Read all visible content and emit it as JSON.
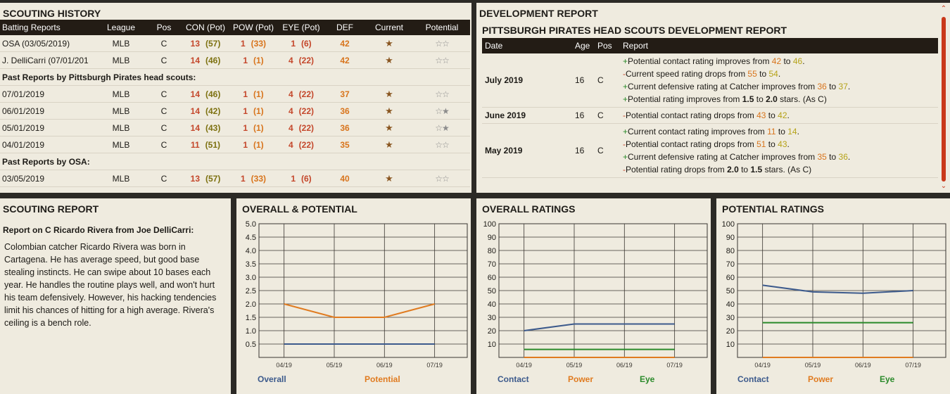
{
  "scouting_history": {
    "title": "SCOUTING HISTORY",
    "headers": [
      "Batting Reports",
      "League",
      "Pos",
      "CON (Pot)",
      "POW (Pot)",
      "EYE (Pot)",
      "DEF",
      "Current",
      "Potential"
    ],
    "current_reports": [
      {
        "src": "OSA (03/05/2019)",
        "league": "MLB",
        "pos": "C",
        "con": "13",
        "conp": "(57)",
        "pow": "1",
        "powp": "(33)",
        "eye": "1",
        "eyep": "(6)",
        "def": "42",
        "cur": "★",
        "pot": "☆☆"
      },
      {
        "src": "J. DelliCarri (07/01/201",
        "league": "MLB",
        "pos": "C",
        "con": "14",
        "conp": "(46)",
        "pow": "1",
        "powp": "(1)",
        "eye": "4",
        "eyep": "(22)",
        "def": "42",
        "cur": "★",
        "pot": "☆☆"
      }
    ],
    "section1_label": "Past Reports by Pittsburgh Pirates head scouts:",
    "past_scout_reports": [
      {
        "src": "07/01/2019",
        "league": "MLB",
        "pos": "C",
        "con": "14",
        "conp": "(46)",
        "pow": "1",
        "powp": "(1)",
        "eye": "4",
        "eyep": "(22)",
        "def": "37",
        "cur": "★",
        "pot": "☆☆"
      },
      {
        "src": "06/01/2019",
        "league": "MLB",
        "pos": "C",
        "con": "14",
        "conp": "(42)",
        "pow": "1",
        "powp": "(1)",
        "eye": "4",
        "eyep": "(22)",
        "def": "36",
        "cur": "★",
        "pot": "☆★"
      },
      {
        "src": "05/01/2019",
        "league": "MLB",
        "pos": "C",
        "con": "14",
        "conp": "(43)",
        "pow": "1",
        "powp": "(1)",
        "eye": "4",
        "eyep": "(22)",
        "def": "36",
        "cur": "★",
        "pot": "☆★"
      },
      {
        "src": "04/01/2019",
        "league": "MLB",
        "pos": "C",
        "con": "11",
        "conp": "(51)",
        "pow": "1",
        "powp": "(1)",
        "eye": "4",
        "eyep": "(22)",
        "def": "35",
        "cur": "★",
        "pot": "☆☆"
      }
    ],
    "section2_label": "Past Reports by OSA:",
    "past_osa_reports": [
      {
        "src": "03/05/2019",
        "league": "MLB",
        "pos": "C",
        "con": "13",
        "conp": "(57)",
        "pow": "1",
        "powp": "(33)",
        "eye": "1",
        "eyep": "(6)",
        "def": "40",
        "cur": "★",
        "pot": "☆☆"
      }
    ]
  },
  "development_report": {
    "title": "DEVELOPMENT REPORT",
    "subtitle": "PITTSBURGH PIRATES HEAD SCOUTS DEVELOPMENT REPORT",
    "headers": [
      "Date",
      "Age",
      "Pos",
      "Report"
    ],
    "rows": [
      {
        "date": "July 2019",
        "age": "16",
        "pos": "C",
        "lines": [
          {
            "sign": "+",
            "text": "Potential contact rating improves from ",
            "v1": "42",
            "mid": " to ",
            "v2": "46",
            "end": "."
          },
          {
            "sign": "-",
            "text": "Current speed rating drops from ",
            "v1": "55",
            "mid": " to ",
            "v2": "54",
            "end": "."
          },
          {
            "sign": "+",
            "text": "Current defensive rating at Catcher improves from ",
            "v1": "36",
            "mid": " to ",
            "v2": "37",
            "end": "."
          },
          {
            "sign": "+",
            "text": "Potential rating improves from ",
            "b1": "1.5",
            "mid": " to ",
            "b2": "2.0",
            "end": " stars. (As C)"
          }
        ]
      },
      {
        "date": "June 2019",
        "age": "16",
        "pos": "C",
        "lines": [
          {
            "sign": "-",
            "text": "Potential contact rating drops from ",
            "v1": "43",
            "mid": " to ",
            "v2": "42",
            "end": "."
          }
        ]
      },
      {
        "date": "May 2019",
        "age": "16",
        "pos": "C",
        "lines": [
          {
            "sign": "+",
            "text": "Current contact rating improves from ",
            "v1": "11",
            "mid": " to ",
            "v2": "14",
            "end": "."
          },
          {
            "sign": "-",
            "text": "Potential contact rating drops from ",
            "v1": "51",
            "mid": " to ",
            "v2": "43",
            "end": "."
          },
          {
            "sign": "+",
            "text": "Current defensive rating at Catcher improves from ",
            "v1": "35",
            "mid": " to ",
            "v2": "36",
            "end": "."
          },
          {
            "sign": "-",
            "text": "Potential rating drops from ",
            "b1": "2.0",
            "mid": " to ",
            "b2": "1.5",
            "end": " stars. (As C)"
          }
        ]
      }
    ]
  },
  "scouting_report": {
    "title": "SCOUTING REPORT",
    "report_title": "Report on C Ricardo Rivera from Joe DelliCarri:",
    "body": "Colombian catcher Ricardo Rivera was born in Cartagena. He has average speed, but good base stealing instincts.  He can swipe about 10 bases each year. He handles the routine plays well, and won't hurt his team defensively. However, his hacking tendencies limit his chances of hitting for a high average. Rivera's ceiling is a bench role."
  },
  "colors": {
    "blue": "#3c5a8c",
    "orange": "#e07b20",
    "green": "#2a8a2a",
    "red": "#c4472b"
  },
  "chart_data": [
    {
      "type": "line",
      "title": "OVERALL & POTENTIAL",
      "x": [
        "04/19",
        "05/19",
        "06/19",
        "07/19"
      ],
      "ylim": [
        0,
        5
      ],
      "yticks": [
        "0.5",
        "1.0",
        "1.5",
        "2.0",
        "2.5",
        "3.0",
        "3.5",
        "4.0",
        "4.5",
        "5.0"
      ],
      "grid": true,
      "series": [
        {
          "name": "Overall",
          "color": "#3c5a8c",
          "values": [
            0.5,
            0.5,
            0.5,
            0.5
          ]
        },
        {
          "name": "Potential",
          "color": "#e07b20",
          "values": [
            2.0,
            1.5,
            1.5,
            2.0
          ]
        }
      ]
    },
    {
      "type": "line",
      "title": "OVERALL RATINGS",
      "x": [
        "04/19",
        "05/19",
        "06/19",
        "07/19"
      ],
      "ylim": [
        0,
        100
      ],
      "yticks": [
        "10",
        "20",
        "30",
        "40",
        "50",
        "60",
        "70",
        "80",
        "90",
        "100"
      ],
      "grid": true,
      "series": [
        {
          "name": "Contact",
          "color": "#3c5a8c",
          "values": [
            20,
            25,
            25,
            25
          ]
        },
        {
          "name": "Power",
          "color": "#e07b20",
          "values": [
            0,
            0,
            0,
            0
          ]
        },
        {
          "name": "Eye",
          "color": "#2a8a2a",
          "values": [
            6,
            6,
            6,
            6
          ]
        }
      ]
    },
    {
      "type": "line",
      "title": "POTENTIAL RATINGS",
      "x": [
        "04/19",
        "05/19",
        "06/19",
        "07/19"
      ],
      "ylim": [
        0,
        100
      ],
      "yticks": [
        "10",
        "20",
        "30",
        "40",
        "50",
        "60",
        "70",
        "80",
        "90",
        "100"
      ],
      "grid": true,
      "series": [
        {
          "name": "Contact",
          "color": "#3c5a8c",
          "values": [
            54,
            49,
            48,
            50
          ]
        },
        {
          "name": "Power",
          "color": "#e07b20",
          "values": [
            0,
            0,
            0,
            0
          ]
        },
        {
          "name": "Eye",
          "color": "#2a8a2a",
          "values": [
            26,
            26,
            26,
            26
          ]
        }
      ]
    }
  ]
}
